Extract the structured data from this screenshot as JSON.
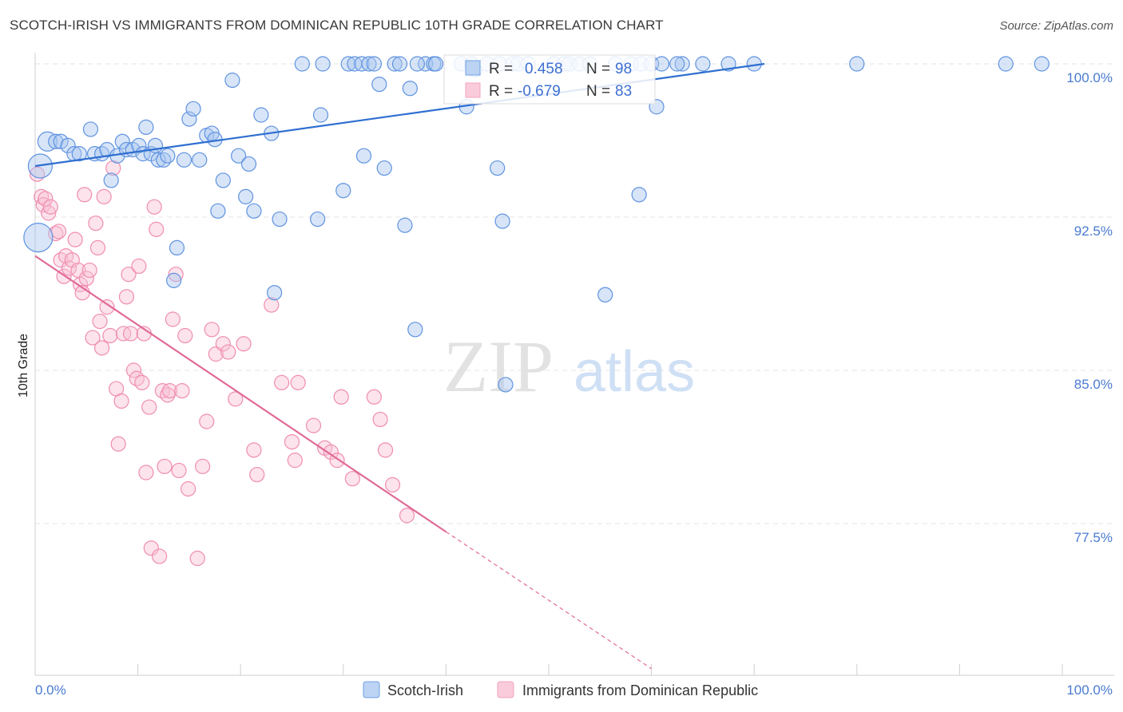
{
  "title": "SCOTCH-IRISH VS IMMIGRANTS FROM DOMINICAN REPUBLIC 10TH GRADE CORRELATION CHART",
  "source": "Source: ZipAtlas.com",
  "watermark": {
    "zip": "ZIP",
    "atlas": "atlas"
  },
  "colors": {
    "blue": "#6fa0e6",
    "blue_line": "#2f6fd0",
    "pink": "#f4a6bf",
    "pink_line": "#e06a97",
    "grid": "#e3e3e3"
  },
  "legend": {
    "r_label": "R =",
    "n_label": "N =",
    "blue": {
      "r": "0.458",
      "n": "98"
    },
    "pink": {
      "r": "-0.679",
      "n": "83"
    }
  },
  "bottom_legend": {
    "blue": "Scotch-Irish",
    "pink": "Immigrants from Dominican Republic"
  },
  "chart_data": {
    "type": "scatter",
    "xlabel": "",
    "ylabel": "10th Grade",
    "x_ticks": [
      "0.0%",
      "100.0%"
    ],
    "y_ticks": [
      "100.0%",
      "92.5%",
      "85.0%",
      "77.5%"
    ],
    "xlim": [
      0,
      100
    ],
    "ylim": [
      70.5,
      101.5
    ],
    "series": [
      {
        "name": "Scotch-Irish",
        "color": "#6fa0e6",
        "trend": {
          "x": [
            0,
            71
          ],
          "y": [
            95.0,
            100.0
          ]
        },
        "points": [
          [
            0.3,
            91.5
          ],
          [
            0.5,
            95.0
          ],
          [
            1.2,
            96.2
          ],
          [
            2.0,
            96.2
          ],
          [
            2.5,
            96.2
          ],
          [
            3.2,
            96.0
          ],
          [
            3.8,
            95.6
          ],
          [
            4.3,
            95.6
          ],
          [
            5.4,
            96.8
          ],
          [
            5.8,
            95.6
          ],
          [
            6.5,
            95.6
          ],
          [
            7.0,
            95.8
          ],
          [
            7.4,
            94.3
          ],
          [
            8.0,
            95.5
          ],
          [
            8.5,
            96.2
          ],
          [
            8.9,
            95.8
          ],
          [
            9.5,
            95.8
          ],
          [
            10.1,
            96.0
          ],
          [
            10.5,
            95.6
          ],
          [
            10.8,
            96.9
          ],
          [
            11.3,
            95.6
          ],
          [
            11.7,
            96.0
          ],
          [
            12.0,
            95.3
          ],
          [
            12.5,
            95.3
          ],
          [
            12.9,
            95.5
          ],
          [
            13.5,
            89.4
          ],
          [
            13.8,
            91.0
          ],
          [
            14.5,
            95.3
          ],
          [
            15.0,
            97.3
          ],
          [
            15.4,
            97.8
          ],
          [
            16.0,
            95.3
          ],
          [
            16.7,
            96.5
          ],
          [
            17.2,
            96.6
          ],
          [
            17.5,
            96.3
          ],
          [
            17.8,
            92.8
          ],
          [
            18.3,
            94.3
          ],
          [
            19.2,
            99.2
          ],
          [
            19.8,
            95.5
          ],
          [
            20.5,
            93.5
          ],
          [
            20.8,
            95.1
          ],
          [
            21.3,
            92.8
          ],
          [
            22.0,
            97.5
          ],
          [
            23.0,
            96.6
          ],
          [
            23.3,
            88.8
          ],
          [
            23.8,
            92.4
          ],
          [
            26.0,
            100.0
          ],
          [
            27.5,
            92.4
          ],
          [
            28.0,
            100.0
          ],
          [
            30.0,
            93.8
          ],
          [
            30.5,
            100.0
          ],
          [
            31.1,
            100.0
          ],
          [
            31.8,
            100.0
          ],
          [
            32.0,
            95.5
          ],
          [
            32.5,
            100.0
          ],
          [
            33.0,
            100.0
          ],
          [
            33.5,
            99.0
          ],
          [
            34.0,
            94.9
          ],
          [
            35.0,
            100.0
          ],
          [
            35.5,
            100.0
          ],
          [
            36.0,
            92.1
          ],
          [
            36.5,
            98.8
          ],
          [
            37.0,
            87.0
          ],
          [
            38.0,
            100.0
          ],
          [
            38.8,
            100.0
          ],
          [
            39.0,
            100.0
          ],
          [
            42.0,
            97.9
          ],
          [
            42.5,
            100.0
          ],
          [
            42.8,
            99.7
          ],
          [
            44.0,
            100.0
          ],
          [
            45.0,
            94.9
          ],
          [
            45.5,
            92.3
          ],
          [
            45.8,
            84.3
          ],
          [
            46.5,
            100.0
          ],
          [
            47.0,
            100.0
          ],
          [
            48.0,
            100.0
          ],
          [
            50.5,
            100.0
          ],
          [
            51.5,
            100.0
          ],
          [
            52.0,
            100.0
          ],
          [
            53.0,
            100.0
          ],
          [
            56.5,
            100.0
          ],
          [
            58.0,
            100.0
          ],
          [
            59.0,
            100.0
          ],
          [
            60.0,
            100.0
          ],
          [
            61.0,
            100.0
          ],
          [
            63.0,
            100.0
          ],
          [
            65.0,
            100.0
          ],
          [
            67.5,
            100.0
          ],
          [
            70.0,
            100.0
          ],
          [
            80.0,
            100.0
          ],
          [
            94.5,
            100.0
          ],
          [
            98.0,
            100.0
          ],
          [
            60.5,
            97.9
          ],
          [
            58.8,
            93.6
          ],
          [
            55.5,
            88.7
          ],
          [
            37.2,
            100.0
          ],
          [
            27.8,
            97.5
          ],
          [
            54.0,
            100.0
          ],
          [
            62.5,
            100.0
          ],
          [
            45.2,
            100.0
          ],
          [
            41.5,
            100.0
          ]
        ]
      },
      {
        "name": "Immigrants from Dominican Republic",
        "color": "#f4a6bf",
        "trend": {
          "x": [
            0,
            40
          ],
          "y": [
            90.6,
            77.1
          ]
        },
        "trend_dashed": {
          "x": [
            40,
            60
          ],
          "y": [
            77.1,
            70.4
          ]
        },
        "points": [
          [
            0.2,
            94.6
          ],
          [
            0.6,
            93.5
          ],
          [
            0.8,
            93.1
          ],
          [
            1.0,
            93.4
          ],
          [
            1.3,
            92.7
          ],
          [
            1.5,
            93.0
          ],
          [
            2.0,
            91.7
          ],
          [
            2.3,
            91.8
          ],
          [
            2.5,
            90.4
          ],
          [
            2.8,
            89.6
          ],
          [
            3.0,
            90.6
          ],
          [
            3.3,
            90.0
          ],
          [
            3.6,
            90.4
          ],
          [
            3.9,
            91.4
          ],
          [
            4.2,
            89.9
          ],
          [
            4.4,
            89.2
          ],
          [
            4.6,
            88.8
          ],
          [
            4.8,
            93.6
          ],
          [
            5.0,
            89.5
          ],
          [
            5.3,
            89.9
          ],
          [
            5.6,
            86.6
          ],
          [
            5.9,
            92.2
          ],
          [
            6.1,
            91.0
          ],
          [
            6.3,
            87.4
          ],
          [
            6.5,
            86.1
          ],
          [
            6.7,
            93.5
          ],
          [
            7.0,
            88.1
          ],
          [
            7.3,
            86.7
          ],
          [
            7.6,
            94.9
          ],
          [
            7.9,
            84.1
          ],
          [
            8.1,
            81.4
          ],
          [
            8.4,
            83.5
          ],
          [
            8.6,
            86.8
          ],
          [
            8.9,
            88.6
          ],
          [
            9.1,
            89.7
          ],
          [
            9.3,
            86.8
          ],
          [
            9.6,
            85.0
          ],
          [
            9.9,
            84.6
          ],
          [
            10.1,
            90.1
          ],
          [
            10.4,
            84.4
          ],
          [
            10.6,
            86.8
          ],
          [
            10.8,
            80.0
          ],
          [
            11.1,
            83.2
          ],
          [
            11.3,
            76.3
          ],
          [
            11.6,
            93.0
          ],
          [
            11.8,
            91.9
          ],
          [
            12.1,
            75.9
          ],
          [
            12.4,
            84.0
          ],
          [
            12.6,
            80.3
          ],
          [
            12.9,
            83.8
          ],
          [
            13.1,
            84.0
          ],
          [
            13.4,
            87.5
          ],
          [
            13.7,
            89.7
          ],
          [
            14.0,
            80.1
          ],
          [
            14.3,
            84.0
          ],
          [
            14.6,
            86.7
          ],
          [
            14.9,
            79.2
          ],
          [
            15.8,
            75.8
          ],
          [
            16.3,
            80.3
          ],
          [
            16.7,
            82.5
          ],
          [
            17.2,
            87.0
          ],
          [
            17.6,
            85.8
          ],
          [
            18.3,
            86.3
          ],
          [
            18.8,
            85.9
          ],
          [
            19.5,
            83.6
          ],
          [
            20.3,
            86.3
          ],
          [
            21.3,
            81.1
          ],
          [
            21.6,
            79.9
          ],
          [
            23.0,
            88.2
          ],
          [
            24.0,
            84.4
          ],
          [
            25.0,
            81.5
          ],
          [
            25.3,
            80.6
          ],
          [
            25.6,
            84.4
          ],
          [
            27.1,
            82.3
          ],
          [
            28.2,
            81.2
          ],
          [
            28.8,
            81.0
          ],
          [
            29.4,
            80.6
          ],
          [
            29.8,
            83.7
          ],
          [
            30.9,
            79.7
          ],
          [
            33.0,
            83.7
          ],
          [
            33.6,
            82.6
          ],
          [
            34.1,
            81.1
          ],
          [
            34.8,
            79.4
          ],
          [
            36.2,
            77.9
          ]
        ]
      }
    ]
  }
}
